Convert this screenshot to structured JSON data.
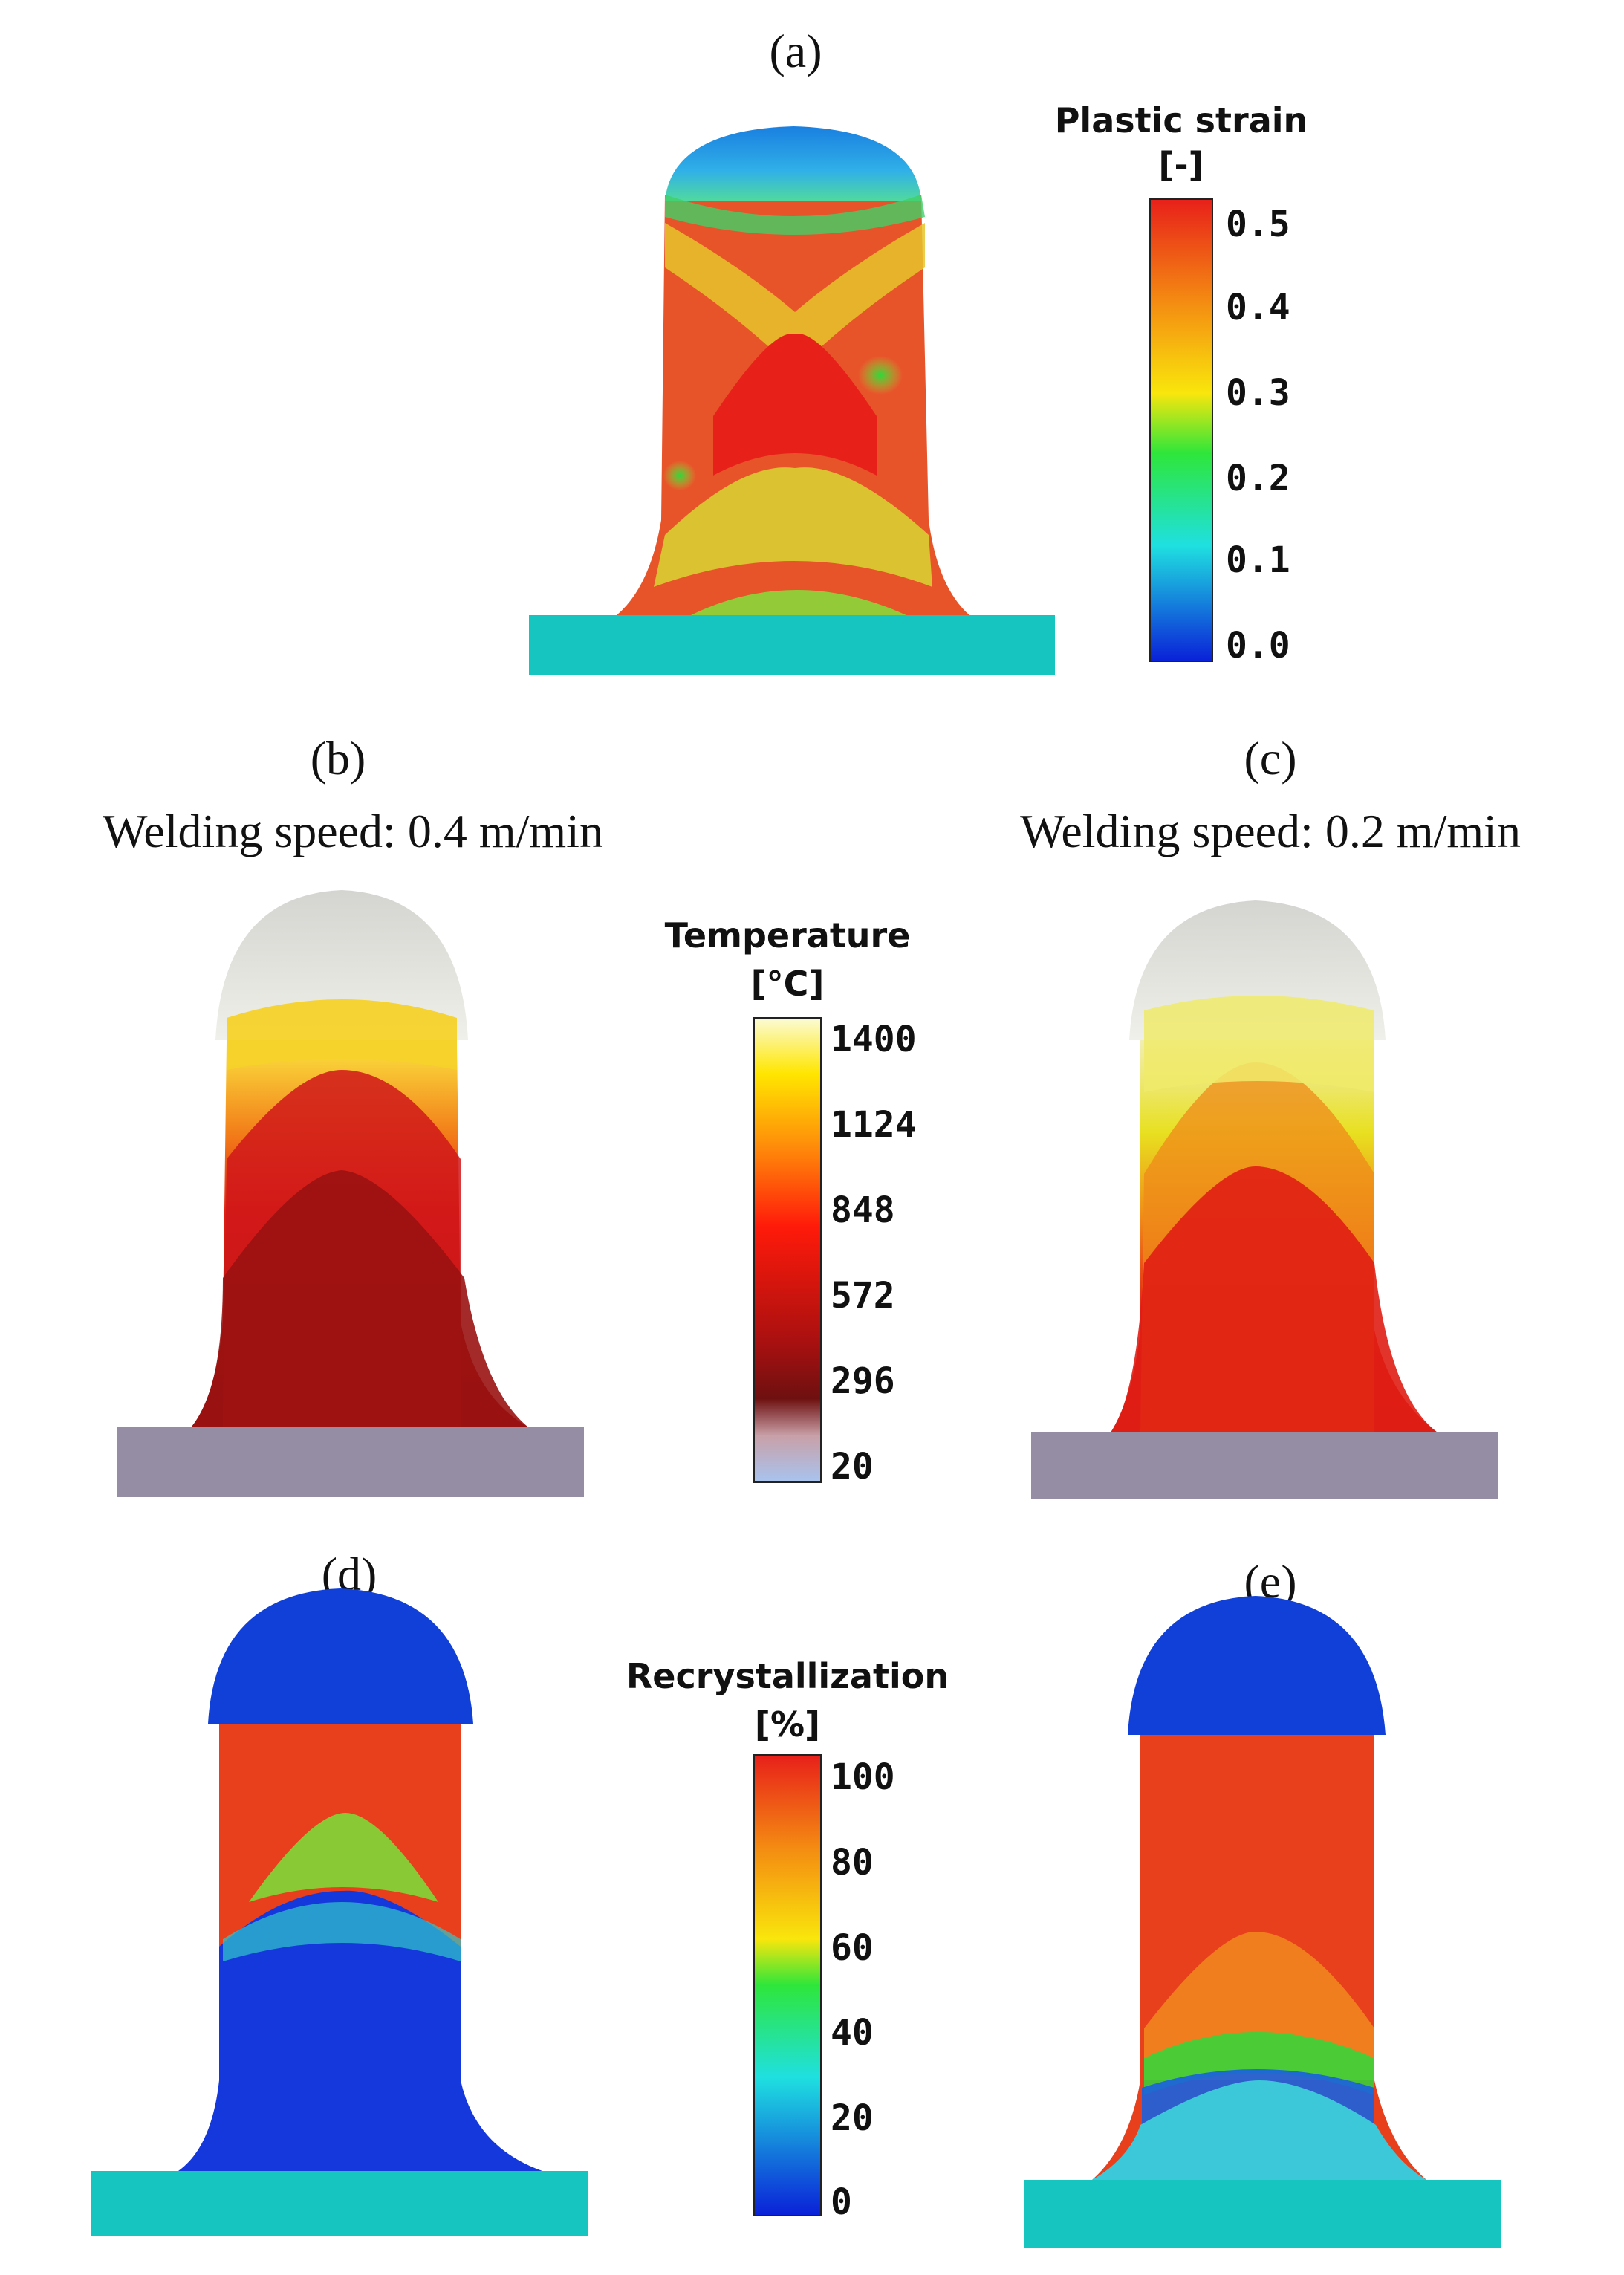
{
  "figure": {
    "panels": {
      "a": {
        "label": "(a)",
        "field": "Plastic strain"
      },
      "b": {
        "label": "(b)",
        "caption": "Welding  speed:  0.4 m/min",
        "field": "Temperature"
      },
      "c": {
        "label": "(c)",
        "caption": "Welding  speed:  0.2 m/min",
        "field": "Temperature"
      },
      "d": {
        "label": "(d)",
        "field": "Recrystallization"
      },
      "e": {
        "label": "(e)",
        "field": "Recrystallization"
      }
    },
    "colorbars": {
      "strain": {
        "title": "Plastic strain",
        "unit": "[-]",
        "ticks": [
          "0.5",
          "0.4",
          "0.3",
          "0.2",
          "0.1",
          "0.0"
        ],
        "colors": [
          "#e8201a",
          "#f9b90c",
          "#2ee63a",
          "#1fe0e0",
          "#0a20d8"
        ]
      },
      "temperature": {
        "title": "Temperature",
        "unit": "[°C]",
        "ticks": [
          "1400",
          "1124",
          "848",
          "572",
          "296",
          "20"
        ],
        "colors": [
          "#fbfbd6",
          "#ffdf00",
          "#ff1a0a",
          "#7a1010",
          "#a8c4f0"
        ]
      },
      "recrystallization": {
        "title": "Recrystallization",
        "unit": "[%]",
        "ticks": [
          "100",
          "80",
          "60",
          "40",
          "20",
          "0"
        ],
        "colors": [
          "#e8201a",
          "#f9b90c",
          "#2ee63a",
          "#1fe0e0",
          "#0a20d8"
        ]
      }
    },
    "colors": {
      "base_strain": "#16c4c0",
      "base_temp": "#958da3",
      "cap_temp": "#e6e6e2",
      "low_blue": "#1040d8",
      "high_red": "#e8281a"
    }
  }
}
